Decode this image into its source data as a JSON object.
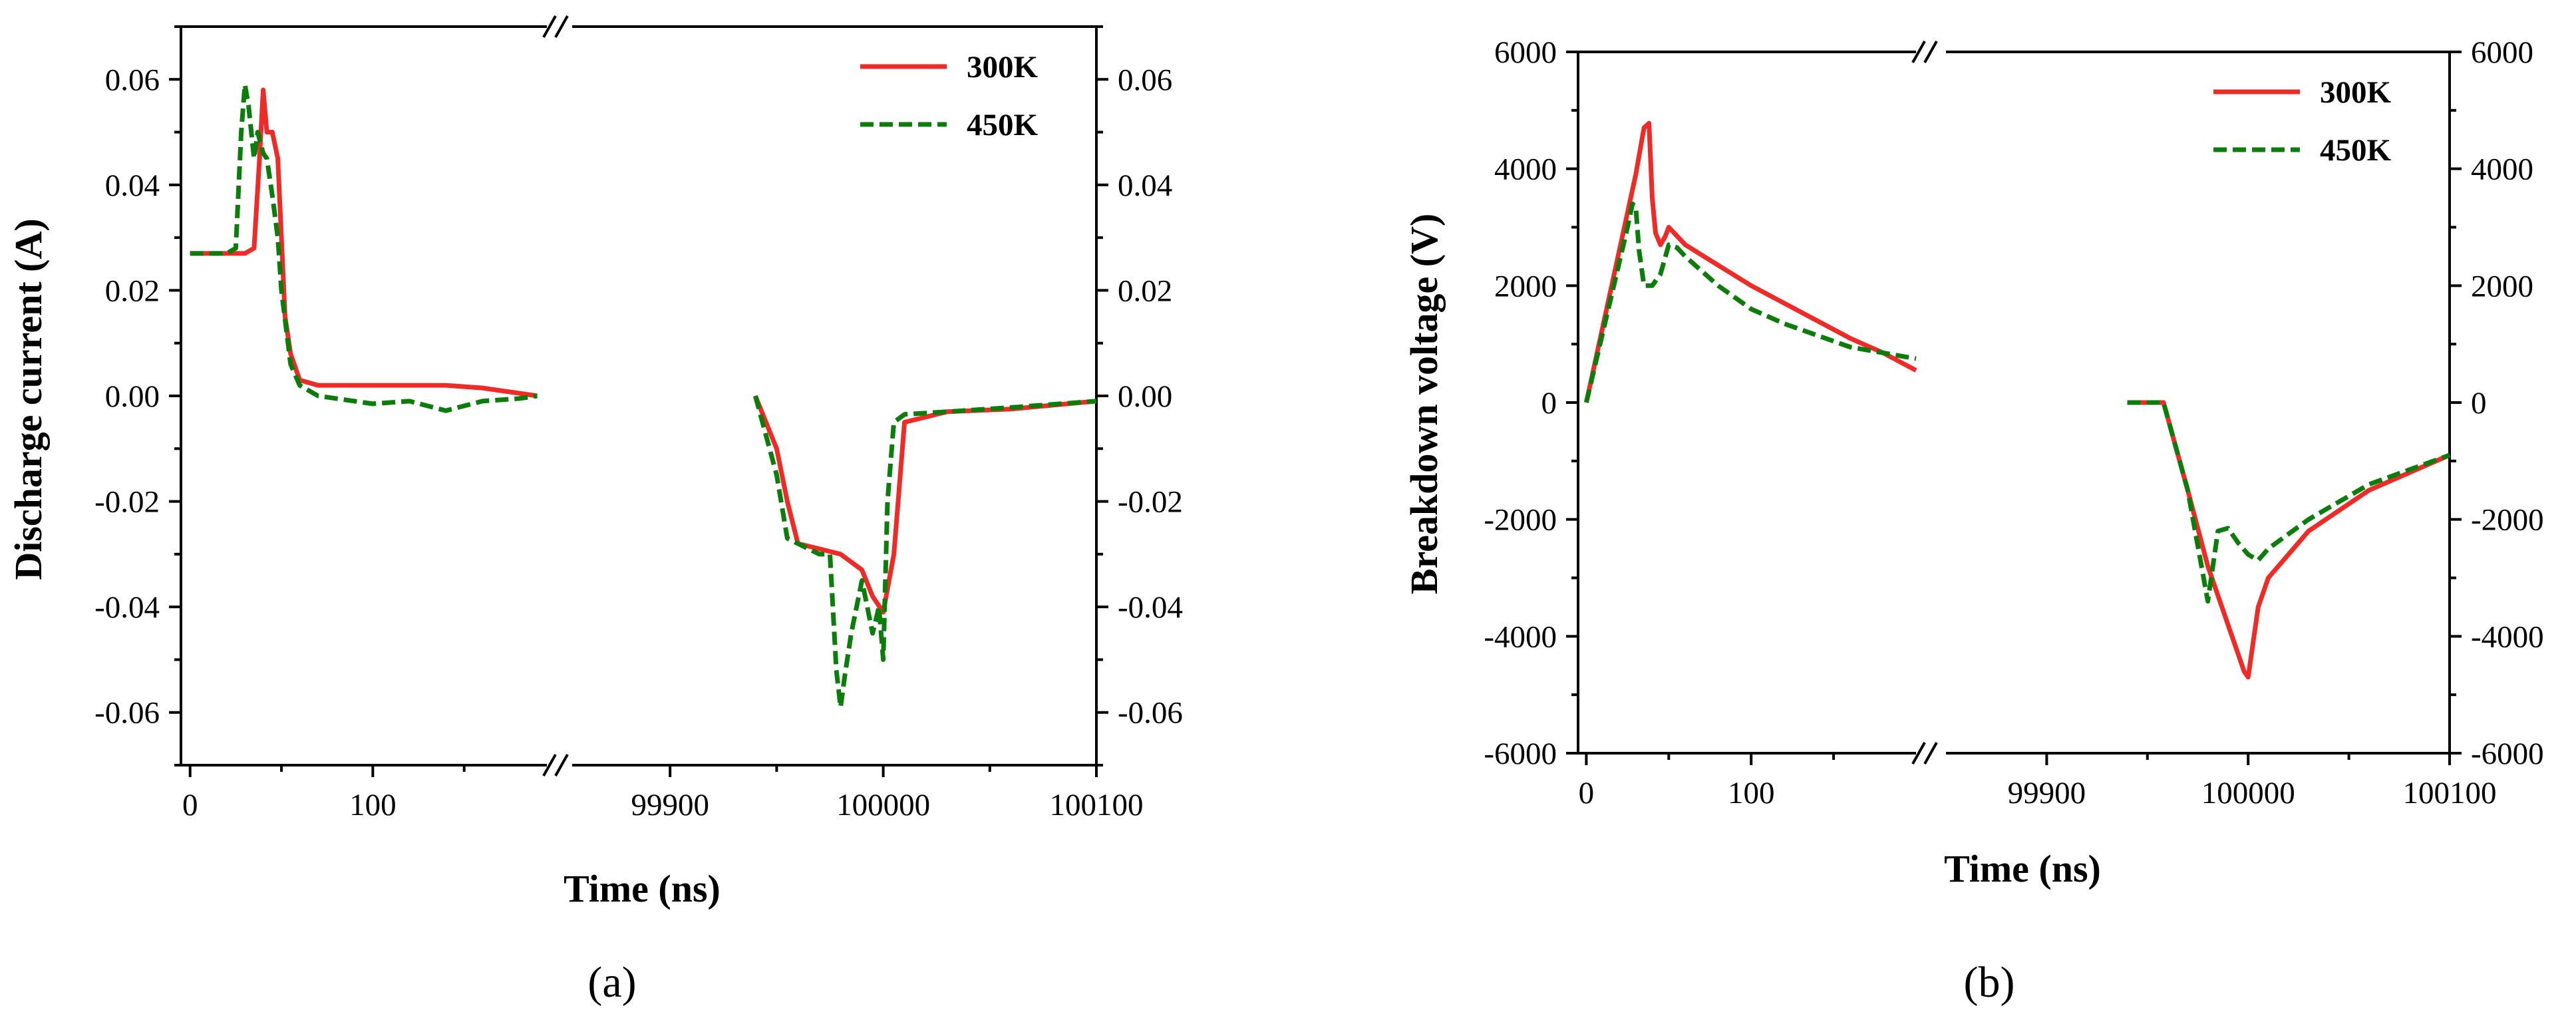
{
  "figure": {
    "colors": {
      "axis": "#000000",
      "series_300K": "#ee2b27",
      "series_450K": "#0a7d0a"
    }
  },
  "chart_data": [
    {
      "type": "line",
      "panel_label": "(a)",
      "xlabel": "Time (ns)",
      "ylabel": "Discharge current (A)",
      "x_axis_break": {
        "left_range": [
          -5,
          200
        ],
        "right_range": [
          99850,
          100100
        ]
      },
      "x_tick_labels": [
        "0",
        "100",
        "99900",
        "100000",
        "100100"
      ],
      "x_tick_values": [
        0,
        100,
        99900,
        100000,
        100100
      ],
      "ylim": [
        -0.07,
        0.07
      ],
      "y_ticks": [
        -0.06,
        -0.04,
        -0.02,
        0.0,
        0.02,
        0.04,
        0.06
      ],
      "y_tick_labels": [
        "-0.06",
        "-0.04",
        "-0.02",
        "0.00",
        "0.02",
        "0.04",
        "0.06"
      ],
      "right_y_axis_mirrors_left": true,
      "legend": {
        "position": "top-right",
        "entries": [
          "300K",
          "450K"
        ]
      },
      "series": [
        {
          "name": "300K",
          "style": "solid",
          "x": [
            0,
            10,
            20,
            30,
            35,
            38,
            40,
            42,
            45,
            48,
            50,
            52,
            55,
            60,
            70,
            80,
            100,
            120,
            140,
            160,
            180,
            190,
            99940,
            99950,
            99955,
            99960,
            99970,
            99980,
            99990,
            99995,
            100000,
            100005,
            100010,
            100030,
            100060,
            100100
          ],
          "y": [
            0.027,
            0.027,
            0.027,
            0.027,
            0.028,
            0.045,
            0.058,
            0.05,
            0.05,
            0.045,
            0.03,
            0.015,
            0.008,
            0.003,
            0.002,
            0.002,
            0.002,
            0.002,
            0.002,
            0.0015,
            0.0005,
            0.0,
            0.0,
            -0.01,
            -0.02,
            -0.028,
            -0.029,
            -0.03,
            -0.033,
            -0.038,
            -0.041,
            -0.03,
            -0.005,
            -0.003,
            -0.0025,
            -0.001
          ]
        },
        {
          "name": "450K",
          "style": "dashed",
          "x": [
            0,
            10,
            20,
            25,
            28,
            30,
            32,
            35,
            37,
            40,
            42,
            45,
            48,
            50,
            55,
            60,
            70,
            100,
            120,
            140,
            160,
            180,
            190,
            99940,
            99950,
            99955,
            99960,
            99970,
            99975,
            99978,
            99980,
            99982,
            99985,
            99990,
            99995,
            99998,
            100000,
            100002,
            100005,
            100010,
            100030,
            100060,
            100100
          ],
          "y": [
            0.027,
            0.027,
            0.027,
            0.028,
            0.05,
            0.059,
            0.055,
            0.045,
            0.05,
            0.046,
            0.045,
            0.038,
            0.03,
            0.02,
            0.006,
            0.002,
            0.0,
            -0.0015,
            -0.001,
            -0.0028,
            -0.001,
            -0.0005,
            0.0,
            0.0,
            -0.015,
            -0.027,
            -0.028,
            -0.03,
            -0.03,
            -0.052,
            -0.059,
            -0.053,
            -0.045,
            -0.035,
            -0.045,
            -0.04,
            -0.05,
            -0.02,
            -0.005,
            -0.0035,
            -0.003,
            -0.0022,
            -0.001
          ]
        }
      ]
    },
    {
      "type": "line",
      "panel_label": "(b)",
      "xlabel": "Time (ns)",
      "ylabel": "Breakdown voltage (V)",
      "x_axis_break": {
        "left_range": [
          -5,
          200
        ],
        "right_range": [
          99850,
          100100
        ]
      },
      "x_tick_labels": [
        "0",
        "100",
        "99900",
        "100000",
        "100100"
      ],
      "x_tick_values": [
        0,
        100,
        99900,
        100000,
        100100
      ],
      "ylim": [
        -6000,
        6000
      ],
      "y_ticks": [
        -6000,
        -4000,
        -2000,
        0,
        2000,
        4000,
        6000
      ],
      "y_tick_labels": [
        "-6000",
        "-4000",
        "-2000",
        "0",
        "2000",
        "4000",
        "6000"
      ],
      "right_y_axis_mirrors_left": true,
      "legend": {
        "position": "top-right",
        "entries": [
          "300K",
          "450K"
        ]
      },
      "series": [
        {
          "name": "300K",
          "style": "solid",
          "x": [
            0,
            10,
            20,
            30,
            35,
            38,
            40,
            42,
            45,
            48,
            50,
            55,
            60,
            80,
            100,
            120,
            140,
            160,
            180,
            200,
            99940,
            99950,
            99958,
            99970,
            99980,
            99990,
            99995,
            99998,
            100000,
            100005,
            100010,
            100030,
            100060,
            100100
          ],
          "y": [
            0,
            1300,
            2600,
            3900,
            4700,
            4780,
            3500,
            2900,
            2700,
            2850,
            3000,
            2850,
            2700,
            2350,
            2000,
            1700,
            1400,
            1100,
            850,
            550,
            0,
            0,
            0,
            -1500,
            -2800,
            -3800,
            -4300,
            -4600,
            -4700,
            -3500,
            -3000,
            -2200,
            -1500,
            -900
          ]
        },
        {
          "name": "450K",
          "style": "dashed",
          "x": [
            0,
            10,
            20,
            25,
            28,
            30,
            32,
            35,
            40,
            45,
            50,
            55,
            60,
            80,
            100,
            120,
            140,
            160,
            180,
            200,
            99940,
            99950,
            99958,
            99970,
            99980,
            99985,
            99990,
            99995,
            100000,
            100005,
            100010,
            100030,
            100060,
            100100
          ],
          "y": [
            0,
            1200,
            2400,
            3000,
            3400,
            3350,
            2600,
            2000,
            2000,
            2200,
            2700,
            2650,
            2500,
            2000,
            1600,
            1350,
            1150,
            950,
            850,
            750,
            0,
            0,
            0,
            -1500,
            -3400,
            -2200,
            -2150,
            -2400,
            -2600,
            -2700,
            -2500,
            -2000,
            -1400,
            -900
          ]
        }
      ]
    }
  ]
}
